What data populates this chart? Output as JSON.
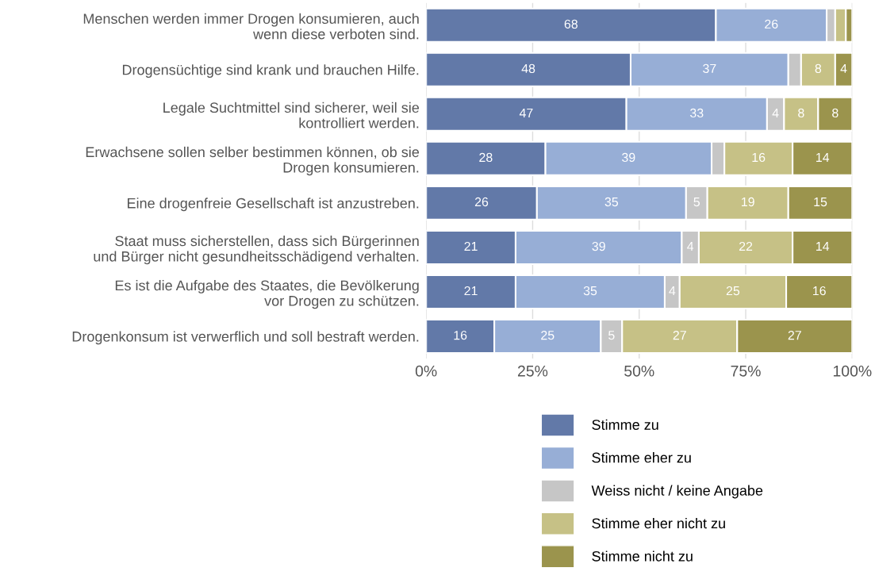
{
  "chart_data": {
    "type": "bar",
    "orientation": "horizontal",
    "stacked": true,
    "categories": [
      "Menschen werden immer Drogen konsumieren, auch\nwenn diese verboten sind.",
      "Drogensüchtige sind krank und brauchen Hilfe.",
      "Legale Suchtmittel sind sicherer, weil sie\nkontrolliert werden.",
      "Erwachsene sollen selber bestimmen können, ob sie\nDrogen konsumieren.",
      "Eine drogenfreie Gesellschaft ist anzustreben.",
      "Staat muss sicherstellen, dass sich Bürgerinnen\nund Bürger nicht gesundheitsschädigend verhalten.",
      "Es ist die Aufgabe des Staates, die Bevölkerung\nvor Drogen zu schützen.",
      "Drogenkonsum ist verwerflich und soll bestraft werden."
    ],
    "series": [
      {
        "name": "Stimme zu",
        "color": "#6279a8",
        "values": [
          68,
          48,
          47,
          28,
          26,
          21,
          21,
          16
        ],
        "value_labels": [
          "68",
          "48",
          "47",
          "28",
          "26",
          "21",
          "21",
          "16"
        ]
      },
      {
        "name": "Stimme eher zu",
        "color": "#97aed6",
        "values": [
          26,
          37,
          33,
          39,
          35,
          39,
          35,
          25
        ],
        "value_labels": [
          "26",
          "37",
          "33",
          "39",
          "35",
          "39",
          "35",
          "25"
        ]
      },
      {
        "name": "Weiss nicht / keine Angabe",
        "color": "#c6c6c6",
        "values": [
          2,
          3,
          4,
          3,
          5,
          4,
          3.5,
          5
        ],
        "value_labels": [
          null,
          null,
          "4",
          null,
          "5",
          "4",
          "4",
          "5"
        ]
      },
      {
        "name": "Stimme eher nicht zu",
        "color": "#c6c186",
        "values": [
          2.5,
          8,
          8,
          16,
          19,
          22,
          25,
          27
        ],
        "value_labels": [
          null,
          "8",
          "8",
          "16",
          "19",
          "22",
          "25",
          "27"
        ]
      },
      {
        "name": "Stimme nicht zu",
        "color": "#9b944d",
        "values": [
          1.5,
          4,
          8,
          14,
          15,
          14,
          15.5,
          27
        ],
        "value_labels": [
          null,
          "4",
          "8",
          "14",
          "15",
          "14",
          "16",
          "27"
        ]
      }
    ],
    "xlim": [
      0,
      100
    ],
    "xticks": [
      {
        "value": 0,
        "label": "0%"
      },
      {
        "value": 25,
        "label": "25%"
      },
      {
        "value": 50,
        "label": "50%"
      },
      {
        "value": 75,
        "label": "75%"
      },
      {
        "value": 100,
        "label": "100%"
      }
    ],
    "grid": "x",
    "legend": "bottom"
  }
}
